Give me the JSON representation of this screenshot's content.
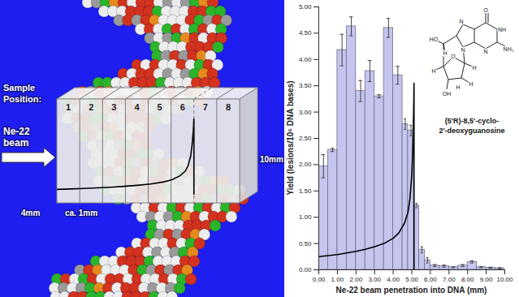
{
  "chart_data": {
    "type": "bar",
    "x_label": "Ne-22 beam penetration into DNA (mm)",
    "y_label": "Yield (lesions/10⁶ DNA bases)",
    "bins": [
      0,
      0.5,
      1.0,
      1.5,
      2.0,
      2.5,
      3.0,
      3.5,
      4.0,
      4.5,
      4.8,
      5.12,
      5.4,
      5.7,
      6.0,
      6.5,
      7.0,
      7.5,
      8.0,
      8.5,
      9.0,
      9.5,
      10.0
    ],
    "values": [
      1.97,
      2.28,
      4.18,
      4.63,
      3.4,
      3.78,
      3.3,
      4.6,
      3.7,
      2.77,
      2.65,
      1.22,
      0.38,
      0.18,
      0.08,
      0.07,
      0.05,
      0.08,
      0.15,
      0.05,
      0.04,
      0.03
    ],
    "errors": [
      0.22,
      0.03,
      0.3,
      0.18,
      0.2,
      0.2,
      0.03,
      0.18,
      0.17,
      0.1,
      0.1,
      0.04,
      0.06,
      0.05,
      0.02,
      0.02,
      0.01,
      0.02,
      0.02,
      0.01,
      0.01,
      0.01
    ],
    "color": "#c5c5ef",
    "curve": {
      "x": [
        0,
        0.5,
        1,
        1.5,
        2,
        2.5,
        3,
        3.5,
        4,
        4.3,
        4.6,
        4.8,
        4.9,
        5.0,
        5.05,
        5.1,
        5.12,
        5.12
      ],
      "y": [
        0.25,
        0.27,
        0.29,
        0.32,
        0.35,
        0.39,
        0.44,
        0.5,
        0.6,
        0.7,
        0.88,
        1.1,
        1.35,
        1.8,
        2.3,
        3.0,
        3.55,
        0
      ],
      "color": "#000000"
    },
    "xlim": [
      0,
      10
    ],
    "xticks": [
      {
        "value": 0,
        "label": "0.00"
      },
      {
        "value": 1,
        "label": "1.00"
      },
      {
        "value": 2,
        "label": "2.00"
      },
      {
        "value": 3,
        "label": "3.00"
      },
      {
        "value": 4,
        "label": "4.00"
      },
      {
        "value": 5,
        "label": "5.00"
      },
      {
        "value": 6,
        "label": "6.00"
      },
      {
        "value": 7,
        "label": "7.00"
      },
      {
        "value": 8,
        "label": "8.00"
      },
      {
        "value": 9,
        "label": "9.00"
      },
      {
        "value": 10,
        "label": "10.00"
      }
    ],
    "ylim": [
      0,
      5
    ],
    "yticks": [
      {
        "value": 0,
        "label": "0.00"
      },
      {
        "value": 0.5,
        "label": "0.50"
      },
      {
        "value": 1,
        "label": "1.00"
      },
      {
        "value": 1.5,
        "label": "1.50"
      },
      {
        "value": 2,
        "label": "2.00"
      },
      {
        "value": 2.5,
        "label": "2.50"
      },
      {
        "value": 3,
        "label": "3.00"
      },
      {
        "value": 3.5,
        "label": "3.50"
      },
      {
        "value": 4,
        "label": "4.00"
      },
      {
        "value": 4.5,
        "label": "4.50"
      },
      {
        "value": 5,
        "label": "5.00"
      }
    ],
    "grid": false,
    "annotation": "(5'R)-8,5'-cyclo-2'-deoxyguanosine",
    "structure_labels": [
      "O",
      "NH",
      "NH₂",
      "N",
      "N",
      "N",
      "HO",
      "H",
      "O",
      "H",
      "H",
      "H",
      "H",
      "OH"
    ]
  },
  "diagram": {
    "sample_label": "Sample Position:",
    "positions": [
      "1",
      "2",
      "3",
      "4",
      "5",
      "6",
      "7",
      "8"
    ],
    "beam_label": "Ne-22 beam",
    "height_label": "10mm",
    "width_label": "4mm",
    "thickness_label": "ca. 1mm"
  }
}
